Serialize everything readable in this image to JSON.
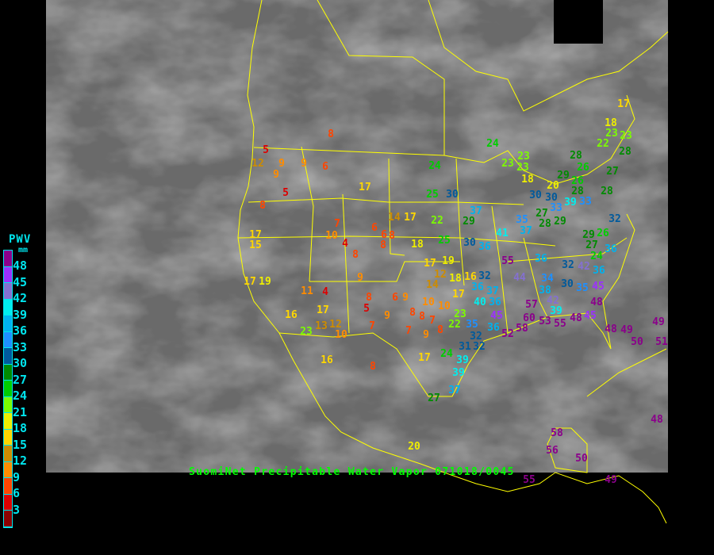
{
  "caption": "SuomiNet Precipitable Water Vapor 071018/0045",
  "legend": {
    "title": "PWV",
    "unit": "mm",
    "labels": [
      "48",
      "45",
      "42",
      "39",
      "36",
      "33",
      "30",
      "27",
      "24",
      "21",
      "18",
      "15",
      "12",
      "9",
      "6",
      "3"
    ],
    "colors": [
      "#8b008b",
      "#9b30ff",
      "#8470d0",
      "#00eeee",
      "#00b2ee",
      "#1e90ff",
      "#005a9c",
      "#008b00",
      "#00cd00",
      "#7cfc00",
      "#eeee00",
      "#ffd700",
      "#cd8c00",
      "#ff8c00",
      "#ff4500",
      "#dd0000",
      "#8b0000"
    ]
  },
  "map": {
    "background_color": "#6e6e6e",
    "boundary_color": "#ffff00"
  },
  "stations": [
    8,
    5,
    12,
    9,
    9,
    6,
    9,
    5,
    8,
    17,
    24,
    25,
    30,
    37,
    29,
    22,
    17,
    14,
    7,
    10,
    4,
    6,
    6,
    8,
    8,
    18,
    25,
    30,
    36,
    17,
    15,
    8,
    17,
    19,
    11,
    4,
    9,
    17,
    16,
    23,
    13,
    12,
    10,
    5,
    8,
    7,
    9,
    6,
    9,
    8,
    8,
    7,
    7,
    9,
    8,
    16,
    8,
    17,
    24,
    39,
    39,
    37,
    27,
    20,
    17,
    19,
    12,
    14,
    18,
    16,
    36,
    32,
    17,
    10,
    10,
    23,
    22,
    35,
    40,
    36,
    37,
    55,
    41,
    35,
    37,
    36,
    44,
    34,
    38,
    42,
    30,
    35,
    45,
    39,
    57,
    60,
    53,
    55,
    48,
    45,
    48,
    48,
    50,
    49,
    49,
    51,
    48,
    58,
    56,
    50,
    55,
    49,
    45,
    36,
    52,
    58,
    32,
    32,
    31,
    24,
    23,
    23,
    23,
    18,
    30,
    30,
    33,
    39,
    20,
    27,
    28,
    29,
    33,
    28,
    26,
    28,
    26,
    29,
    22,
    23,
    23,
    28,
    18,
    17,
    27,
    28,
    32,
    29,
    27,
    24,
    26,
    36,
    36,
    42,
    32
  ]
}
